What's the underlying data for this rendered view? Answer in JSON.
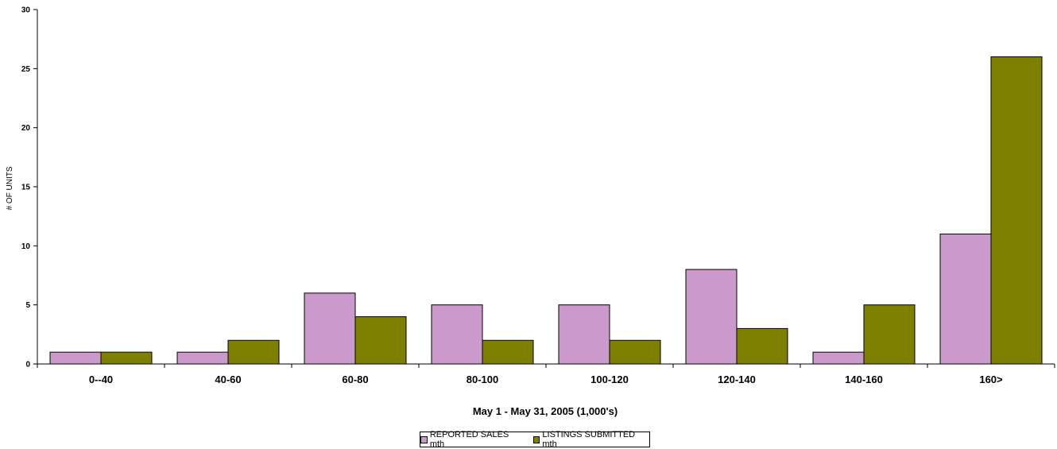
{
  "chart_data": {
    "type": "bar",
    "categories": [
      "0--40",
      "40-60",
      "60-80",
      "80-100",
      "100-120",
      "120-140",
      "140-160",
      "160>"
    ],
    "series": [
      {
        "name": "REPORTED SALES mth",
        "values": [
          1,
          1,
          6,
          5,
          5,
          8,
          1,
          11
        ],
        "color": "#cc99cc"
      },
      {
        "name": "LISTINGS SUBMITTED mth",
        "values": [
          1,
          2,
          4,
          2,
          2,
          3,
          5,
          26
        ],
        "color": "#808000"
      }
    ],
    "title": "",
    "xlabel": "May 1 - May 31, 2005 (1,000's)",
    "ylabel": "# OF UNITS",
    "ylim": [
      0,
      30
    ],
    "yticks": [
      0,
      5,
      10,
      15,
      20,
      25,
      30
    ],
    "grid": false,
    "legend_position": "bottom"
  }
}
